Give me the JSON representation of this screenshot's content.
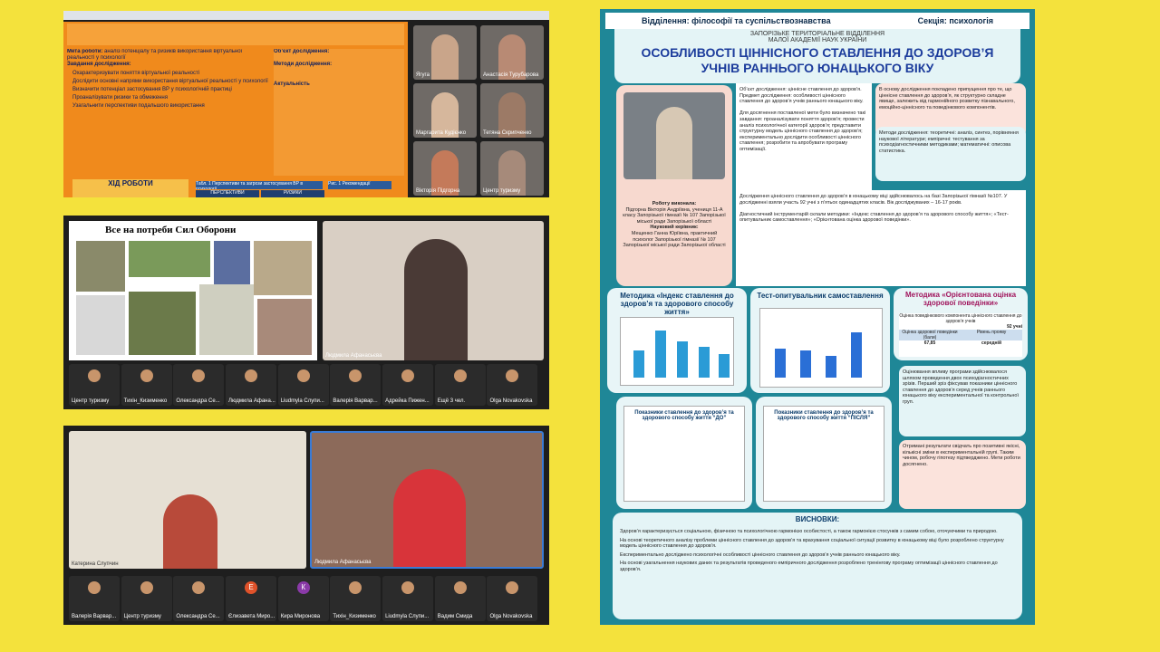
{
  "panel1": {
    "slide": {
      "label1": "Мета роботи:",
      "text1": "аналіз потенціалу та ризиків використання віртуальної реальності у психології",
      "label2": "Завдання дослідження:",
      "tasks": [
        "Охарактеризувати поняття віртуальної реальності",
        "Дослідити основні напрями використання віртуальної реальності у психології",
        "Визначити потенціал застосування ВР у психологічній практиці",
        "Проаналізувати ризики та обмеження",
        "Узагальнити перспективи подальшого використання"
      ],
      "label3": "Об’єкт дослідження:",
      "label4": "Методи дослідження:",
      "label5": "Актуальність",
      "footer": "ХІД РОБОТИ",
      "table1": "Табл. 1 Перспективи та загрози застосування ВР в психології",
      "table2": "Рис. 1 Рекомендації",
      "col1": "ПЕРСПЕКТИВИ",
      "col2": "РИЗИКИ"
    },
    "participants": [
      "Ягуга",
      "Анастасія Турубарова",
      "Маргарита Кудієнко",
      "Тетяна Скрипченко",
      "Вікторія Підгорна",
      "Центр туризму"
    ]
  },
  "panel2": {
    "slide_title": "Все на потреби Сил Оборони",
    "speaker": "Людмила Афанасьєва",
    "tiles": [
      "Центр туризму",
      "Тихін_Кизименко",
      "Олександра Се...",
      "Людмила Афана...",
      "Liudmyla Слупи...",
      "Валерія Варвар...",
      "Адрейка Пижен...",
      "Ещё 3 чел.",
      "Olga Novakovska"
    ]
  },
  "panel3": {
    "video1": "Катерина Слупчин",
    "video2": "Людмила Афанасьєва",
    "tiles": [
      "Валерія Варвар...",
      "Центр туризму",
      "Олександра Се...",
      "Єлизавета Миро...",
      "Кира Миронова",
      "Тихін_Кизименко",
      "Liudmyla Слупи...",
      "Вадим Смида",
      "Olga Novakovska"
    ],
    "initials": {
      "3": "Е",
      "4": "К"
    }
  },
  "poster": {
    "department": "Відділення: філософії та суспільствознавства",
    "section": "Секція: психологія",
    "org": "ЗАПОРІЗЬКЕ ТЕРИТОРІАЛЬНЕ ВІДДІЛЕННЯ МАЛОЇ АКАДЕМІЇ НАУК УКРАЇНИ",
    "title": "ОСОБЛИВОСТІ ЦІННІСНОГО СТАВЛЕННЯ ДО ЗДОРОВ’Я УЧНІВ РАННЬОГО ЮНАЦЬКОГО ВІКУ",
    "author_label": "Роботу виконала:",
    "author": "Підгорна Вікторія Андріївна, учениця 11-А класу Запорізької гімназії № 107 Запорізької міської ради Запорізької області",
    "advisor_label": "Науковий керівник:",
    "advisor": "Мещенко Ганна Юріївна, практичний психолог Запорізької гімназії № 107 Запорізької міської ради Запорізької області",
    "object": "Об’єкт дослідження: ціннісне ставлення до здоров’я. Предмет дослідження: особливості ціннісного ставлення до здоров’я учнів раннього юнацького віку.",
    "tasks": "Для досягнення поставленої мети було визначено такі завдання: проаналізувати поняття здоров’я; провести аналіз психологічної категорії здоров’я; представити структурну модель ціннісного ставлення до здоров’я; експериментально дослідити особливості ціннісного ставлення; розробити та апробувати програму оптимізації.",
    "hypothesis": "В основу дослідження покладено припущення про те, що ціннісне ставлення до здоров’я, як структурно складне явище, залежить від гармонійного розвитку пізнавального, емоційно-ціннісного та поведінкового компонентів.",
    "methods": "Методи дослідження: теоретичні: аналіз, синтез, порівняння наукової літератури; емпіричні: тестування за психодіагностичними методиками; математичні: описова статистика.",
    "sample": "Дослідження ціннісного ставлення до здоров’я в юнацькому віці здійснювалось на базі Запорізької гімназії №107. У дослідженні взяли участь 92 учні з п’ятьох одинадцятих класів. Вік досліджуваних – 16-17 років.",
    "instruments": "Діагностичний інструментарій склали методики: «Індекс ставлення до здоров’я та здорового способу життя»; «Тест-опитувальник самоставлення»; «Орієнтована оцінка здорової поведінки».",
    "chart1": "Методика «Індекс ставлення до здоров’я та здорового способу життя»",
    "chart2": "Тест-опитувальник самоставлення",
    "chart3": "Методика «Орієнтована оцінка здорової поведінки»",
    "chart3_sub": "Оцінка поведінкового компонента ціннісного ставлення до здоров’я учнів",
    "chart3_n": "92 учні",
    "chart3_h1": "Оцінка здорової поведінки (бали)",
    "chart3_h2": "Рівень прояву",
    "chart3_v1": "67,85",
    "chart3_v2": "середній",
    "chart4": "Показники ставлення до здоров’я та здорового способу життя “ДО”",
    "chart5": "Показники ставлення до здоров’я та здорового способу життя “ПІСЛЯ”",
    "eval": "Оцінювання впливу програми здійснювалося шляхом проведення двох психодіагностичних зрізів. Перший зріз фіксував показники ціннісного ставлення до здоров’я серед учнів раннього юнацького віку експериментальної та контрольної груп.",
    "result": "Отримані результати свідчать про позитивні якісні, кількісні зміни в експериментальній групі. Таким чином, робочу гіпотезу підтверджено. Мети роботи досягнено.",
    "conclusions_title": "ВИСНОВКИ:",
    "conclusions": [
      "Здоров’я характеризується соціальною, фізичною та психологічною гармонією особистості, а також гармонією стосунків з самим собою, оточуючими та природою.",
      "На основі теоретичного аналізу проблеми ціннісного ставлення до здоров’я та врахування соціальної ситуації розвитку в юнацькому віці було розроблено структурну модель ціннісного ставлення до здоров’я.",
      "Експериментально досліджено психологічні особливості ціннісного ставлення до здоров’я учнів раннього юнацького віку.",
      "На основі узагальнення наукових даних та результатів проведеного емпіричного дослідження розроблено тренінгову програму оптимізації ціннісного ставлення до здоров’я."
    ]
  }
}
